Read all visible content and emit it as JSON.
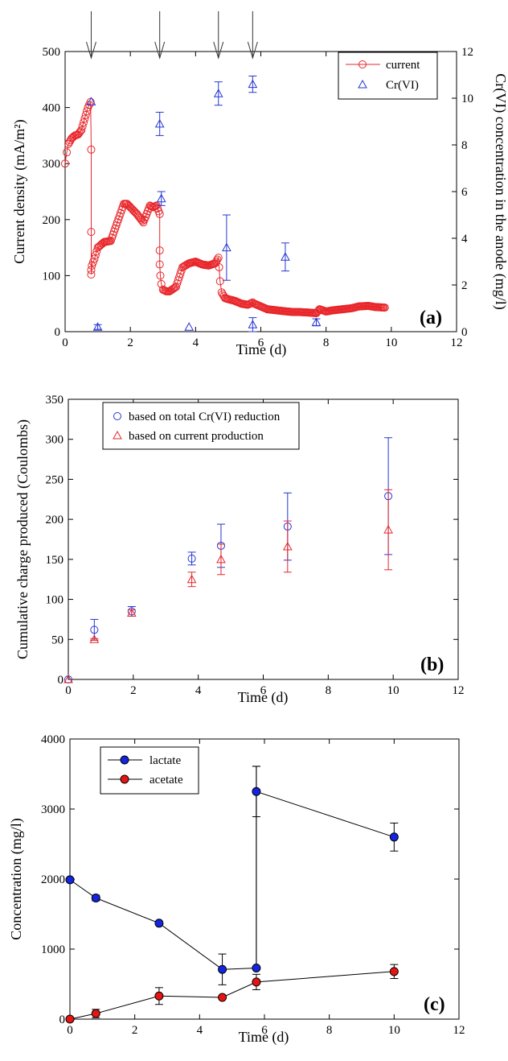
{
  "chart_data": [
    {
      "id": "a",
      "type": "scatter",
      "panel_label": "(a)",
      "xlabel": "Time (d)",
      "ylabel": "Current density (mA/m²)",
      "ylabel_right": "Cr(VI) concentration in the anode (mg/l)",
      "xlim": [
        0,
        12
      ],
      "ylim": [
        0,
        500
      ],
      "ylim_right": [
        0,
        12
      ],
      "xticks": [
        0,
        2,
        4,
        6,
        8,
        10,
        12
      ],
      "yticks": [
        0,
        100,
        200,
        300,
        400,
        500
      ],
      "yticks_right": [
        0,
        2,
        4,
        6,
        8,
        10,
        12
      ],
      "legend_position": "top-right",
      "arrows_at_x": [
        0.8,
        2.9,
        4.7,
        5.75
      ],
      "series": [
        {
          "name": "current",
          "axis": "left",
          "marker": "circle",
          "color": "#e8262a",
          "x": [
            0,
            0.05,
            0.1,
            0.2,
            0.3,
            0.4,
            0.5,
            0.6,
            0.7,
            0.78,
            0.8,
            0.8,
            0.8,
            0.8,
            0.82,
            0.9,
            1.0,
            1.2,
            1.4,
            1.6,
            1.8,
            1.9,
            2.0,
            2.2,
            2.4,
            2.6,
            2.7,
            2.8,
            2.9,
            2.9,
            2.9,
            2.92,
            2.95,
            3.0,
            3.1,
            3.2,
            3.4,
            3.6,
            3.8,
            4.0,
            4.2,
            4.4,
            4.6,
            4.7,
            4.72,
            4.75,
            4.8,
            4.9,
            5.0,
            5.2,
            5.4,
            5.6,
            5.75,
            5.8,
            6.0,
            6.2,
            6.5,
            6.8,
            7.0,
            7.2,
            7.5,
            7.7,
            7.8,
            8.0,
            8.2,
            8.5,
            8.8,
            9.0,
            9.3,
            9.5,
            9.8
          ],
          "y": [
            300,
            320,
            335,
            345,
            350,
            352,
            360,
            380,
            400,
            410,
            325,
            178,
            110,
            102,
            118,
            130,
            150,
            160,
            162,
            195,
            228,
            228,
            222,
            210,
            195,
            225,
            222,
            225,
            210,
            145,
            120,
            100,
            85,
            75,
            72,
            72,
            80,
            115,
            122,
            125,
            120,
            118,
            122,
            132,
            115,
            90,
            70,
            60,
            58,
            55,
            50,
            48,
            52,
            50,
            45,
            40,
            38,
            36,
            35,
            35,
            34,
            33,
            40,
            36,
            38,
            40,
            42,
            45,
            46,
            44,
            43
          ]
        },
        {
          "name": "Cr(VI)",
          "axis": "right",
          "marker": "triangle",
          "color": "#2436d6",
          "x": [
            0.8,
            1.0,
            2.9,
            2.95,
            3.8,
            4.7,
            4.95,
            5.75,
            5.75,
            6.75,
            7.7
          ],
          "y": [
            9.85,
            0.2,
            8.9,
            5.7,
            0.2,
            10.2,
            3.6,
            10.6,
            0.3,
            3.2,
            0.4
          ],
          "error": [
            0,
            0.1,
            0.5,
            0.3,
            0,
            0.5,
            1.4,
            0.35,
            0.3,
            0.6,
            0.15
          ]
        }
      ]
    },
    {
      "id": "b",
      "type": "scatter",
      "panel_label": "(b)",
      "xlabel": "Time (d)",
      "ylabel": "Cumulative charge produced (Coulombs)",
      "xlim": [
        0,
        12
      ],
      "ylim": [
        0,
        350
      ],
      "xticks": [
        0,
        2,
        4,
        6,
        8,
        10,
        12
      ],
      "yticks": [
        0,
        50,
        100,
        150,
        200,
        250,
        300,
        350
      ],
      "legend_position": "top-left",
      "series": [
        {
          "name": "based on total Cr(VI) reduction",
          "marker": "circle",
          "color": "#2436d6",
          "x": [
            0,
            0.8,
            1.95,
            3.8,
            4.7,
            6.75,
            9.85
          ],
          "y": [
            0,
            62,
            85,
            151,
            167,
            191,
            229
          ],
          "error": [
            0,
            13,
            6,
            8,
            27,
            42,
            73
          ]
        },
        {
          "name": "based on current production",
          "marker": "triangle",
          "color": "#e8262a",
          "x": [
            0,
            0.8,
            1.95,
            3.8,
            4.7,
            6.75,
            9.85
          ],
          "y": [
            0,
            50,
            83,
            125,
            150,
            166,
            187
          ],
          "error": [
            0,
            1,
            4,
            9,
            19,
            32,
            50
          ]
        }
      ]
    },
    {
      "id": "c",
      "type": "line",
      "panel_label": "(c)",
      "xlabel": "Time (d)",
      "ylabel": "Concentration (mg/l)",
      "xlim": [
        0,
        12
      ],
      "ylim": [
        0,
        4000
      ],
      "xticks": [
        0,
        2,
        4,
        6,
        8,
        10,
        12
      ],
      "yticks": [
        0,
        1000,
        2000,
        3000,
        4000
      ],
      "legend_position": "top-left",
      "series": [
        {
          "name": "lactate",
          "marker": "circle-filled",
          "color": "#1424e0",
          "x": [
            0,
            0.8,
            2.75,
            4.7,
            5.75,
            10
          ],
          "y": [
            1990,
            1730,
            1370,
            710,
            730,
            2600
          ],
          "error": [
            0,
            40,
            0,
            220,
            2880,
            200
          ],
          "extra": {
            "x": 5.75,
            "y": 3250,
            "error": 360
          }
        },
        {
          "name": "acetate",
          "marker": "circle-filled",
          "color": "#e81414",
          "x": [
            0,
            0.8,
            2.75,
            4.7,
            5.75,
            10
          ],
          "y": [
            0,
            80,
            330,
            310,
            530,
            680
          ],
          "error": [
            0,
            60,
            120,
            0,
            110,
            100
          ]
        }
      ]
    }
  ]
}
